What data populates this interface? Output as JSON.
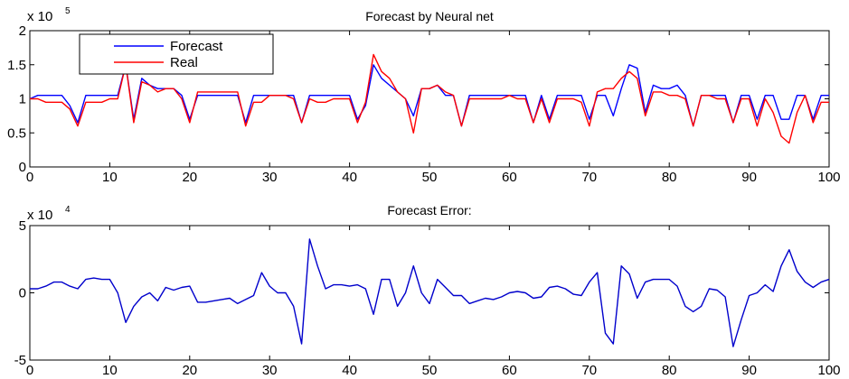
{
  "chart_data": [
    {
      "type": "line",
      "title": "Forecast by Neural net",
      "xlabel": "",
      "ylabel": "",
      "y_exponent_label": "x 10",
      "y_exponent": "5",
      "xlim": [
        0,
        100
      ],
      "ylim": [
        0,
        200000
      ],
      "xticks": [
        0,
        10,
        20,
        30,
        40,
        50,
        60,
        70,
        80,
        90,
        100
      ],
      "yticks": [
        0,
        50000,
        100000,
        150000,
        200000
      ],
      "ytick_labels": [
        "0",
        "0.5",
        "1",
        "1.5",
        "2"
      ],
      "legend_position": "top-left",
      "x": [
        0,
        1,
        2,
        3,
        4,
        5,
        6,
        7,
        8,
        9,
        10,
        11,
        12,
        13,
        14,
        15,
        16,
        17,
        18,
        19,
        20,
        21,
        22,
        23,
        24,
        25,
        26,
        27,
        28,
        29,
        30,
        31,
        32,
        33,
        34,
        35,
        36,
        37,
        38,
        39,
        40,
        41,
        42,
        43,
        44,
        45,
        46,
        47,
        48,
        49,
        50,
        51,
        52,
        53,
        54,
        55,
        56,
        57,
        58,
        59,
        60,
        61,
        62,
        63,
        64,
        65,
        66,
        67,
        68,
        69,
        70,
        71,
        72,
        73,
        74,
        75,
        76,
        77,
        78,
        79,
        80,
        81,
        82,
        83,
        84,
        85,
        86,
        87,
        88,
        89,
        90,
        91,
        92,
        93,
        94,
        95,
        96,
        97,
        98,
        99,
        100
      ],
      "series": [
        {
          "name": "Forecast",
          "color": "#0000ff",
          "values": [
            100000,
            105000,
            105000,
            105000,
            105000,
            90000,
            65000,
            105000,
            105000,
            105000,
            105000,
            105000,
            150000,
            70000,
            130000,
            120000,
            115000,
            115000,
            115000,
            105000,
            70000,
            105000,
            105000,
            105000,
            105000,
            105000,
            105000,
            65000,
            105000,
            105000,
            105000,
            105000,
            105000,
            105000,
            65000,
            105000,
            105000,
            105000,
            105000,
            105000,
            105000,
            70000,
            90000,
            150000,
            130000,
            120000,
            110000,
            100000,
            75000,
            115000,
            115000,
            120000,
            105000,
            105000,
            60000,
            105000,
            105000,
            105000,
            105000,
            105000,
            105000,
            105000,
            105000,
            65000,
            105000,
            70000,
            105000,
            105000,
            105000,
            105000,
            70000,
            105000,
            105000,
            75000,
            115000,
            150000,
            145000,
            80000,
            120000,
            115000,
            115000,
            120000,
            105000,
            60000,
            105000,
            105000,
            105000,
            105000,
            65000,
            105000,
            105000,
            70000,
            105000,
            105000,
            70000,
            70000,
            105000,
            105000,
            70000,
            105000,
            105000
          ]
        },
        {
          "name": "Real",
          "color": "#ff0000",
          "values": [
            100000,
            100000,
            95000,
            95000,
            95000,
            85000,
            60000,
            95000,
            95000,
            95000,
            100000,
            100000,
            150000,
            65000,
            125000,
            120000,
            110000,
            115000,
            115000,
            100000,
            65000,
            110000,
            110000,
            110000,
            110000,
            110000,
            110000,
            60000,
            95000,
            95000,
            105000,
            105000,
            105000,
            100000,
            65000,
            100000,
            95000,
            95000,
            100000,
            100000,
            100000,
            65000,
            95000,
            165000,
            140000,
            130000,
            110000,
            100000,
            50000,
            115000,
            115000,
            120000,
            110000,
            105000,
            60000,
            100000,
            100000,
            100000,
            100000,
            100000,
            105000,
            100000,
            100000,
            65000,
            100000,
            65000,
            100000,
            100000,
            100000,
            95000,
            60000,
            110000,
            115000,
            115000,
            130000,
            140000,
            130000,
            75000,
            110000,
            110000,
            105000,
            105000,
            100000,
            60000,
            105000,
            105000,
            100000,
            100000,
            65000,
            100000,
            100000,
            60000,
            100000,
            80000,
            45000,
            35000,
            80000,
            105000,
            65000,
            95000,
            95000
          ]
        }
      ]
    },
    {
      "type": "line",
      "title": "Forecast Error:",
      "xlabel": "",
      "ylabel": "",
      "y_exponent_label": "x 10",
      "y_exponent": "4",
      "xlim": [
        0,
        100
      ],
      "ylim": [
        -50000,
        50000
      ],
      "xticks": [
        0,
        10,
        20,
        30,
        40,
        50,
        60,
        70,
        80,
        90,
        100
      ],
      "yticks": [
        -50000,
        0,
        50000
      ],
      "ytick_labels": [
        "-5",
        "0",
        "5"
      ],
      "x": [
        0,
        1,
        2,
        3,
        4,
        5,
        6,
        7,
        8,
        9,
        10,
        11,
        12,
        13,
        14,
        15,
        16,
        17,
        18,
        19,
        20,
        21,
        22,
        23,
        24,
        25,
        26,
        27,
        28,
        29,
        30,
        31,
        32,
        33,
        34,
        35,
        36,
        37,
        38,
        39,
        40,
        41,
        42,
        43,
        44,
        45,
        46,
        47,
        48,
        49,
        50,
        51,
        52,
        53,
        54,
        55,
        56,
        57,
        58,
        59,
        60,
        61,
        62,
        63,
        64,
        65,
        66,
        67,
        68,
        69,
        70,
        71,
        72,
        73,
        74,
        75,
        76,
        77,
        78,
        79,
        80,
        81,
        82,
        83,
        84,
        85,
        86,
        87,
        88,
        89,
        90,
        91,
        92,
        93,
        94,
        95,
        96,
        97,
        98,
        99,
        100
      ],
      "series": [
        {
          "name": "",
          "color": "#0000cc",
          "values": [
            3000,
            3000,
            5000,
            8000,
            8000,
            5000,
            3000,
            10000,
            11000,
            10000,
            10000,
            0,
            -22000,
            -10000,
            -3000,
            0,
            -6000,
            4000,
            2000,
            4000,
            5000,
            -7000,
            -7000,
            -6000,
            -5000,
            -4000,
            -8000,
            -5000,
            -2000,
            15000,
            5000,
            0,
            0,
            -10000,
            -38000,
            40000,
            20000,
            3000,
            6000,
            6000,
            5000,
            6000,
            3000,
            -16000,
            10000,
            10000,
            -10000,
            0,
            20000,
            0,
            -8000,
            10000,
            4000,
            -2000,
            -2000,
            -8000,
            -6000,
            -4000,
            -5000,
            -3000,
            0,
            1000,
            0,
            -4000,
            -3000,
            4000,
            5000,
            3000,
            -1000,
            -2000,
            8000,
            15000,
            -30000,
            -38000,
            20000,
            14000,
            -4000,
            8000,
            10000,
            10000,
            10000,
            5000,
            -10000,
            -14000,
            -10000,
            3000,
            2000,
            -3000,
            -40000,
            -20000,
            -2000,
            0,
            6000,
            1000,
            20000,
            32000,
            16000,
            8000,
            4000,
            8000,
            10000
          ]
        }
      ]
    }
  ]
}
